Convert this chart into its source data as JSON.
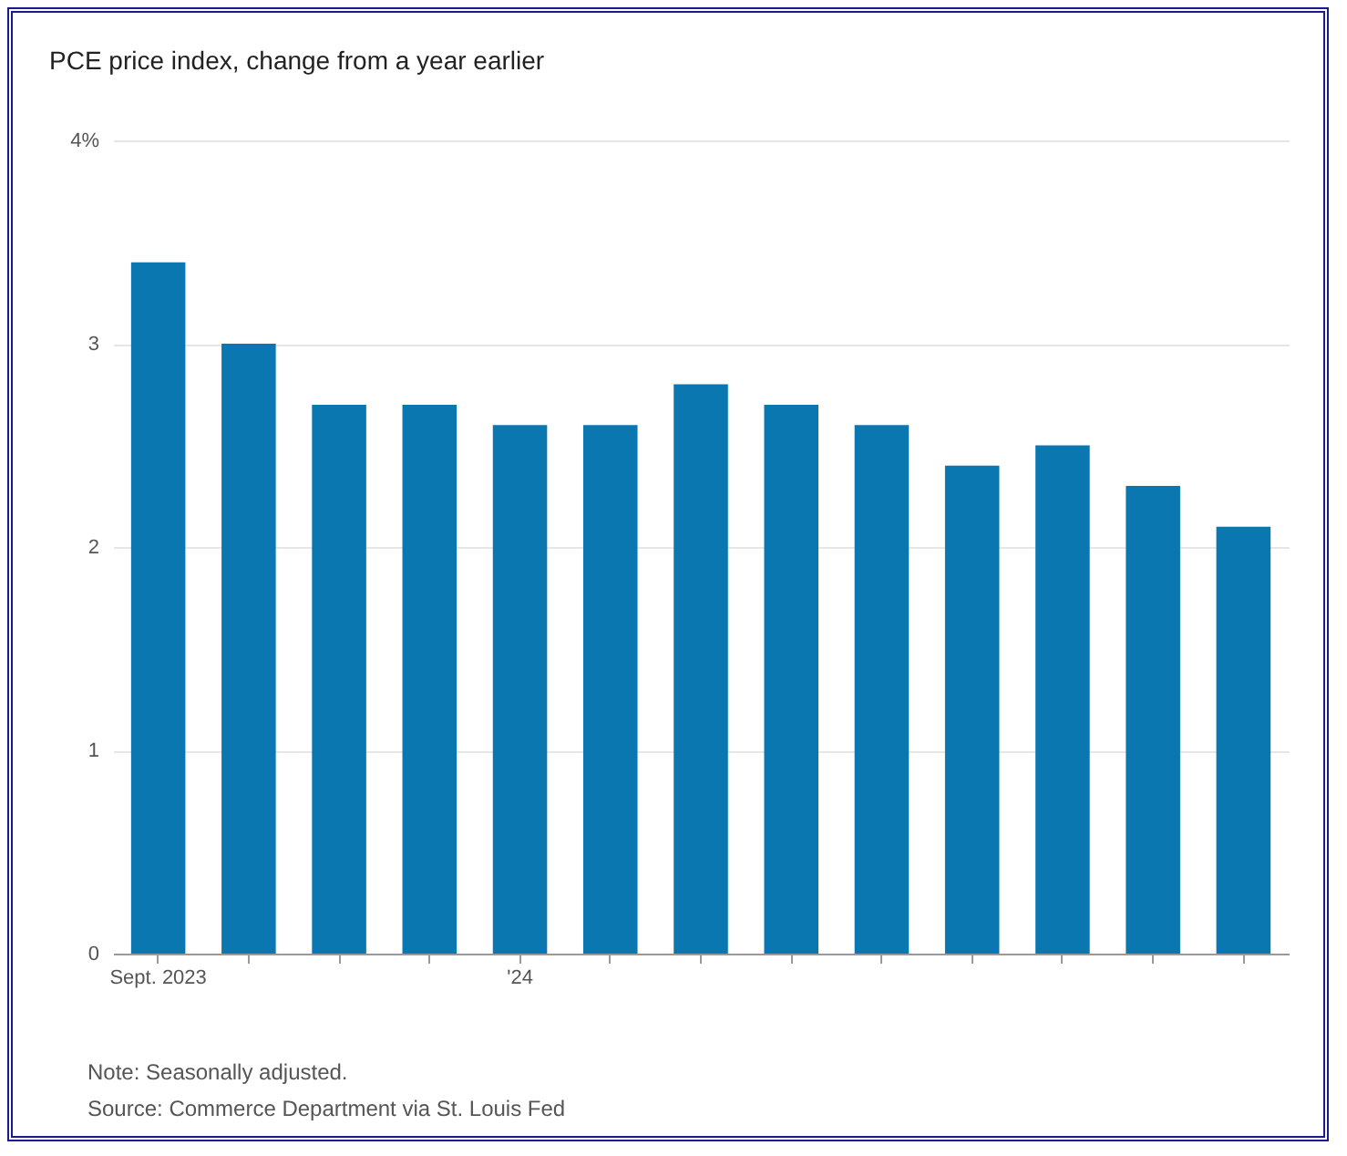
{
  "chart_data": {
    "type": "bar",
    "title": "PCE price index, change from a year earlier",
    "categories": [
      "Sept. 2023",
      null,
      null,
      null,
      "'24",
      null,
      null,
      null,
      null,
      null,
      null,
      null,
      null
    ],
    "values": [
      3.4,
      3.0,
      2.7,
      2.7,
      2.6,
      2.6,
      2.8,
      2.7,
      2.6,
      2.4,
      2.5,
      2.3,
      2.1
    ],
    "color": "#0a77b0",
    "ylim": [
      0,
      4
    ],
    "yticks": [
      0,
      1,
      2,
      3,
      {
        "value": 4,
        "label": "4%"
      }
    ],
    "grid": "y",
    "annotations": [
      "Note: Seasonally adjusted.",
      "Source: Commerce Department via St. Louis Fed"
    ]
  }
}
